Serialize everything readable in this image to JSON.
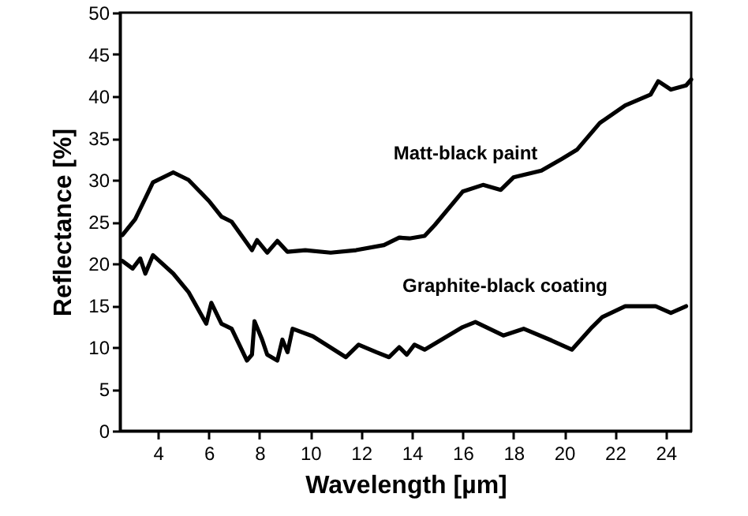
{
  "chart_data": {
    "type": "line",
    "xlabel": "Wavelength [µm]",
    "ylabel": "Reflectance [%]",
    "xlim": [
      2.5,
      25
    ],
    "ylim": [
      0,
      50
    ],
    "xticks": [
      4,
      6,
      8,
      10,
      12,
      14,
      16,
      18,
      20,
      22,
      24
    ],
    "yticks": [
      0,
      5,
      10,
      15,
      20,
      25,
      30,
      35,
      40,
      45,
      50
    ],
    "grid": false,
    "line_style": "solid",
    "annotations": [
      "Matt-black paint",
      "Graphite-black coating"
    ],
    "series": [
      {
        "color": "#000000",
        "x": [
          2.6,
          3.1,
          3.5,
          3.8,
          4.6,
          5.2,
          6.0,
          6.5,
          6.9,
          7.7,
          7.9,
          8.3,
          8.7,
          9.1,
          9.8,
          10.8,
          11.8,
          12.9,
          13.5,
          13.9,
          14.5,
          14.9,
          16.0,
          16.8,
          17.5,
          18.0,
          19.1,
          19.9,
          20.5,
          21.4,
          22.4,
          23.4,
          23.7,
          24.2,
          24.8,
          25.0
        ],
        "values": [
          23.4,
          25.3,
          27.8,
          29.7,
          30.9,
          30,
          27.5,
          25.6,
          25,
          21.6,
          22.8,
          21.3,
          22.7,
          21.4,
          21.6,
          21.3,
          21.6,
          22.2,
          23.1,
          23,
          23.3,
          24.6,
          28.6,
          29.4,
          28.8,
          30.3,
          31.1,
          32.5,
          33.6,
          36.8,
          38.9,
          40.2,
          41.8,
          40.8,
          41.3,
          42
        ]
      },
      {
        "color": "#000000",
        "x": [
          2.6,
          3.0,
          3.3,
          3.5,
          3.8,
          4.6,
          5.2,
          5.9,
          6.1,
          6.5,
          6.9,
          7.5,
          7.7,
          7.8,
          8.1,
          8.3,
          8.7,
          8.9,
          9.1,
          9.3,
          10.1,
          11.4,
          11.9,
          12.6,
          13.1,
          13.5,
          13.8,
          14.1,
          14.5,
          16.0,
          16.5,
          17.6,
          18.4,
          19.5,
          20.3,
          21.1,
          21.5,
          22.4,
          23.6,
          24.2,
          24.8
        ],
        "values": [
          20.3,
          19.4,
          20.6,
          18.8,
          21,
          18.8,
          16.6,
          12.8,
          15.3,
          12.8,
          12.2,
          8.4,
          9.1,
          13.1,
          10.9,
          9.1,
          8.4,
          10.9,
          9.4,
          12.2,
          11.3,
          8.8,
          10.3,
          9.4,
          8.8,
          10,
          9.1,
          10.3,
          9.7,
          12.4,
          13,
          11.4,
          12.2,
          10.8,
          9.7,
          12.4,
          13.6,
          14.9,
          14.9,
          14.1,
          14.9
        ]
      }
    ]
  }
}
